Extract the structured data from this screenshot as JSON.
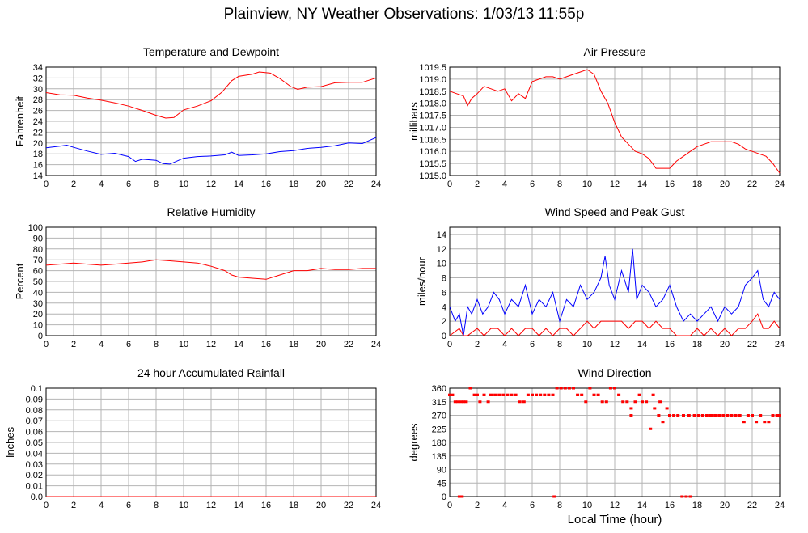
{
  "page": {
    "title": "Plainview, NY Weather Observations: 1/03/13 11:55p",
    "xlabel": "Local Time (hour)"
  },
  "chart_data": [
    {
      "id": "temperature",
      "type": "line",
      "title": "Temperature and Dewpoint",
      "ylabel": "Fahrenheit",
      "xlim": [
        0,
        24
      ],
      "ylim": [
        14,
        34
      ],
      "xticks": [
        0,
        2,
        4,
        6,
        8,
        10,
        12,
        14,
        16,
        18,
        20,
        22,
        24
      ],
      "yticks": [
        14,
        16,
        18,
        20,
        22,
        24,
        26,
        28,
        30,
        32,
        34
      ],
      "grid": true,
      "series": [
        {
          "color": "#ff0000",
          "x": [
            0,
            1,
            2,
            3,
            4,
            5,
            6,
            7,
            8,
            8.7,
            9.3,
            10,
            11,
            12,
            12.8,
            13.5,
            14,
            15,
            15.5,
            16.3,
            17,
            17.8,
            18.3,
            19,
            20,
            21,
            22,
            23,
            24
          ],
          "y": [
            29.3,
            28.9,
            28.8,
            28.3,
            27.9,
            27.4,
            26.8,
            26.0,
            25.1,
            24.6,
            24.7,
            26.1,
            26.8,
            27.8,
            29.4,
            31.5,
            32.3,
            32.7,
            33.1,
            32.9,
            31.9,
            30.4,
            29.9,
            30.3,
            30.4,
            31.1,
            31.2,
            31.2,
            32.0
          ]
        },
        {
          "color": "#0000ff",
          "x": [
            0,
            1,
            1.5,
            2,
            3,
            4,
            5,
            6,
            6.5,
            7,
            8,
            8.5,
            9,
            10,
            11,
            12,
            13,
            13.5,
            14,
            15,
            16,
            17,
            18,
            19,
            20,
            21,
            22,
            23,
            24
          ],
          "y": [
            19.1,
            19.4,
            19.6,
            19.2,
            18.5,
            17.9,
            18.1,
            17.5,
            16.6,
            17.0,
            16.8,
            16.2,
            16.1,
            17.2,
            17.5,
            17.6,
            17.8,
            18.3,
            17.7,
            17.8,
            18.0,
            18.4,
            18.6,
            19.0,
            19.2,
            19.5,
            20.0,
            19.9,
            21.0
          ]
        }
      ]
    },
    {
      "id": "pressure",
      "type": "line",
      "title": "Air Pressure",
      "ylabel": "millibars",
      "xlim": [
        0,
        24
      ],
      "ylim": [
        1015.0,
        1019.5
      ],
      "xticks": [
        0,
        2,
        4,
        6,
        8,
        10,
        12,
        14,
        16,
        18,
        20,
        22,
        24
      ],
      "yticks": [
        1015.0,
        1015.5,
        1016.0,
        1016.5,
        1017.0,
        1017.5,
        1018.0,
        1018.5,
        1019.0,
        1019.5
      ],
      "grid": true,
      "series": [
        {
          "color": "#ff0000",
          "x": [
            0,
            0.5,
            1,
            1.3,
            1.6,
            2,
            2.5,
            3,
            3.5,
            4,
            4.5,
            5,
            5.5,
            6,
            6.5,
            7,
            7.5,
            8,
            8.5,
            9,
            9.5,
            10,
            10.5,
            11,
            11.5,
            12,
            12.5,
            13,
            13.5,
            14,
            14.5,
            15,
            15.5,
            16,
            16.5,
            17,
            17.5,
            18,
            18.5,
            19,
            19.5,
            20,
            20.5,
            21,
            21.5,
            22,
            22.5,
            23,
            23.5,
            24
          ],
          "y": [
            1018.5,
            1018.4,
            1018.3,
            1017.9,
            1018.2,
            1018.4,
            1018.7,
            1018.6,
            1018.5,
            1018.6,
            1018.1,
            1018.4,
            1018.2,
            1018.9,
            1019.0,
            1019.1,
            1019.1,
            1019.0,
            1019.1,
            1019.2,
            1019.3,
            1019.4,
            1019.2,
            1018.5,
            1018.0,
            1017.2,
            1016.6,
            1016.3,
            1016.0,
            1015.9,
            1015.7,
            1015.3,
            1015.3,
            1015.3,
            1015.6,
            1015.8,
            1016.0,
            1016.2,
            1016.3,
            1016.4,
            1016.4,
            1016.4,
            1016.4,
            1016.3,
            1016.1,
            1016.0,
            1015.9,
            1015.8,
            1015.5,
            1015.1
          ]
        }
      ]
    },
    {
      "id": "humidity",
      "type": "line",
      "title": "Relative Humidity",
      "ylabel": "Percent",
      "xlim": [
        0,
        24
      ],
      "ylim": [
        0,
        100
      ],
      "xticks": [
        0,
        2,
        4,
        6,
        8,
        10,
        12,
        14,
        16,
        18,
        20,
        22,
        24
      ],
      "yticks": [
        0,
        10,
        20,
        30,
        40,
        50,
        60,
        70,
        80,
        90,
        100
      ],
      "grid": true,
      "series": [
        {
          "color": "#ff0000",
          "x": [
            0,
            1,
            2,
            3,
            4,
            5,
            6,
            7,
            7.5,
            8,
            9,
            10,
            11,
            12,
            12.5,
            13,
            13.5,
            14,
            15,
            16,
            17,
            18,
            19,
            20,
            21,
            22,
            23,
            24
          ],
          "y": [
            65,
            66,
            67,
            66,
            65,
            66,
            67,
            68,
            69,
            70,
            69,
            68,
            67,
            64,
            62,
            60,
            56,
            54,
            53,
            52,
            56,
            60,
            60,
            62,
            61,
            61,
            62,
            62
          ]
        }
      ]
    },
    {
      "id": "wind",
      "type": "line",
      "title": "Wind Speed and Peak Gust",
      "ylabel": "miles/hour",
      "xlim": [
        0,
        24
      ],
      "ylim": [
        0,
        15
      ],
      "xticks": [
        0,
        2,
        4,
        6,
        8,
        10,
        12,
        14,
        16,
        18,
        20,
        22,
        24
      ],
      "yticks": [
        0,
        2,
        4,
        6,
        8,
        10,
        12,
        14
      ],
      "grid": true,
      "series": [
        {
          "color": "#0000ff",
          "x": [
            0,
            0.4,
            0.7,
            1,
            1.3,
            1.6,
            2,
            2.4,
            2.8,
            3.2,
            3.6,
            4,
            4.5,
            5,
            5.5,
            6,
            6.5,
            7,
            7.5,
            8,
            8.5,
            9,
            9.5,
            10,
            10.5,
            11,
            11.3,
            11.6,
            12,
            12.5,
            13,
            13.3,
            13.6,
            14,
            14.5,
            15,
            15.5,
            16,
            16.5,
            17,
            17.5,
            18,
            18.5,
            19,
            19.5,
            20,
            20.5,
            21,
            21.5,
            22,
            22.4,
            22.8,
            23.2,
            23.6,
            24
          ],
          "y": [
            4,
            2,
            3,
            0,
            4,
            3,
            5,
            3,
            4,
            6,
            5,
            3,
            5,
            4,
            7,
            3,
            5,
            4,
            6,
            2,
            5,
            4,
            7,
            5,
            6,
            8,
            11,
            7,
            5,
            9,
            6,
            12,
            5,
            7,
            6,
            4,
            5,
            7,
            4,
            2,
            3,
            2,
            3,
            4,
            2,
            4,
            3,
            4,
            7,
            8,
            9,
            5,
            4,
            6,
            5
          ]
        },
        {
          "color": "#ff0000",
          "x": [
            0,
            0.7,
            1,
            1.3,
            2,
            2.5,
            3,
            3.5,
            4,
            4.5,
            5,
            5.5,
            6,
            6.5,
            7,
            7.5,
            8,
            8.5,
            9,
            9.5,
            10,
            10.5,
            11,
            11.5,
            12,
            12.5,
            13,
            13.5,
            14,
            14.5,
            15,
            15.5,
            16,
            16.5,
            17,
            17.5,
            18,
            18.5,
            19,
            19.5,
            20,
            20.5,
            21,
            21.5,
            22,
            22.4,
            22.8,
            23.2,
            23.6,
            24
          ],
          "y": [
            0,
            1,
            0,
            0,
            1,
            0,
            1,
            1,
            0,
            1,
            0,
            1,
            1,
            0,
            1,
            0,
            1,
            1,
            0,
            1,
            2,
            1,
            2,
            2,
            2,
            2,
            1,
            2,
            2,
            1,
            2,
            1,
            1,
            0,
            0,
            0,
            1,
            0,
            1,
            0,
            1,
            0,
            1,
            1,
            2,
            3,
            1,
            1,
            2,
            1
          ]
        }
      ]
    },
    {
      "id": "rainfall",
      "type": "line",
      "title": "24 hour Accumulated Rainfall",
      "ylabel": "Inches",
      "xlim": [
        0,
        24
      ],
      "ylim": [
        0.0,
        0.1
      ],
      "xticks": [
        0,
        2,
        4,
        6,
        8,
        10,
        12,
        14,
        16,
        18,
        20,
        22,
        24
      ],
      "yticks": [
        0.0,
        0.01,
        0.02,
        0.03,
        0.04,
        0.05,
        0.06,
        0.07,
        0.08,
        0.09,
        0.1
      ],
      "grid": true,
      "series": [
        {
          "color": "#ff0000",
          "x": [
            0,
            24
          ],
          "y": [
            0,
            0
          ]
        }
      ]
    },
    {
      "id": "direction",
      "type": "scatter",
      "title": "Wind Direction",
      "ylabel": "degrees",
      "xlim": [
        0,
        24
      ],
      "ylim": [
        0,
        360
      ],
      "xticks": [
        0,
        2,
        4,
        6,
        8,
        10,
        12,
        14,
        16,
        18,
        20,
        22,
        24
      ],
      "yticks": [
        0,
        45,
        90,
        135,
        180,
        225,
        270,
        315,
        360
      ],
      "grid": true,
      "series": [
        {
          "color": "#ff0000",
          "x": [
            0,
            0.2,
            0.4,
            0.6,
            0.8,
            1.0,
            1.2,
            1.5,
            1.8,
            2.0,
            2.2,
            2.5,
            2.8,
            3.0,
            3.3,
            3.6,
            3.9,
            4.2,
            4.5,
            4.8,
            5.1,
            5.4,
            5.7,
            6.0,
            6.3,
            6.6,
            6.9,
            7.2,
            7.5,
            7.8,
            8.1,
            8.4,
            8.7,
            9.0,
            9.3,
            9.6,
            9.9,
            10.2,
            10.5,
            10.8,
            11.1,
            11.4,
            11.7,
            12.0,
            12.3,
            12.6,
            12.9,
            13.2,
            13.5,
            13.8,
            14.0,
            14.3,
            14.6,
            14.9,
            15.2,
            15.5,
            15.8,
            16.0,
            16.3,
            16.6,
            17.0,
            17.4,
            17.8,
            18.1,
            18.4,
            18.7,
            19.0,
            19.3,
            19.6,
            19.9,
            20.2,
            20.5,
            20.8,
            21.1,
            21.4,
            21.7,
            22.0,
            22.3,
            22.6,
            22.9,
            23.2,
            23.5,
            23.8,
            24.0,
            0.7,
            0.9,
            7.6,
            16.9,
            17.2,
            17.5,
            13.2,
            14.8,
            15.3
          ],
          "y": [
            338,
            338,
            315,
            315,
            315,
            315,
            315,
            360,
            338,
            338,
            315,
            338,
            315,
            338,
            338,
            338,
            338,
            338,
            338,
            338,
            315,
            315,
            338,
            338,
            338,
            338,
            338,
            338,
            338,
            360,
            360,
            360,
            360,
            360,
            338,
            338,
            315,
            360,
            338,
            338,
            315,
            315,
            360,
            360,
            338,
            315,
            315,
            293,
            315,
            338,
            315,
            315,
            225,
            293,
            270,
            248,
            293,
            270,
            270,
            270,
            270,
            270,
            270,
            270,
            270,
            270,
            270,
            270,
            270,
            270,
            270,
            270,
            270,
            270,
            248,
            270,
            270,
            248,
            270,
            248,
            248,
            270,
            270,
            270,
            0,
            0,
            0,
            0,
            0,
            0,
            270,
            338,
            315
          ]
        }
      ]
    }
  ]
}
